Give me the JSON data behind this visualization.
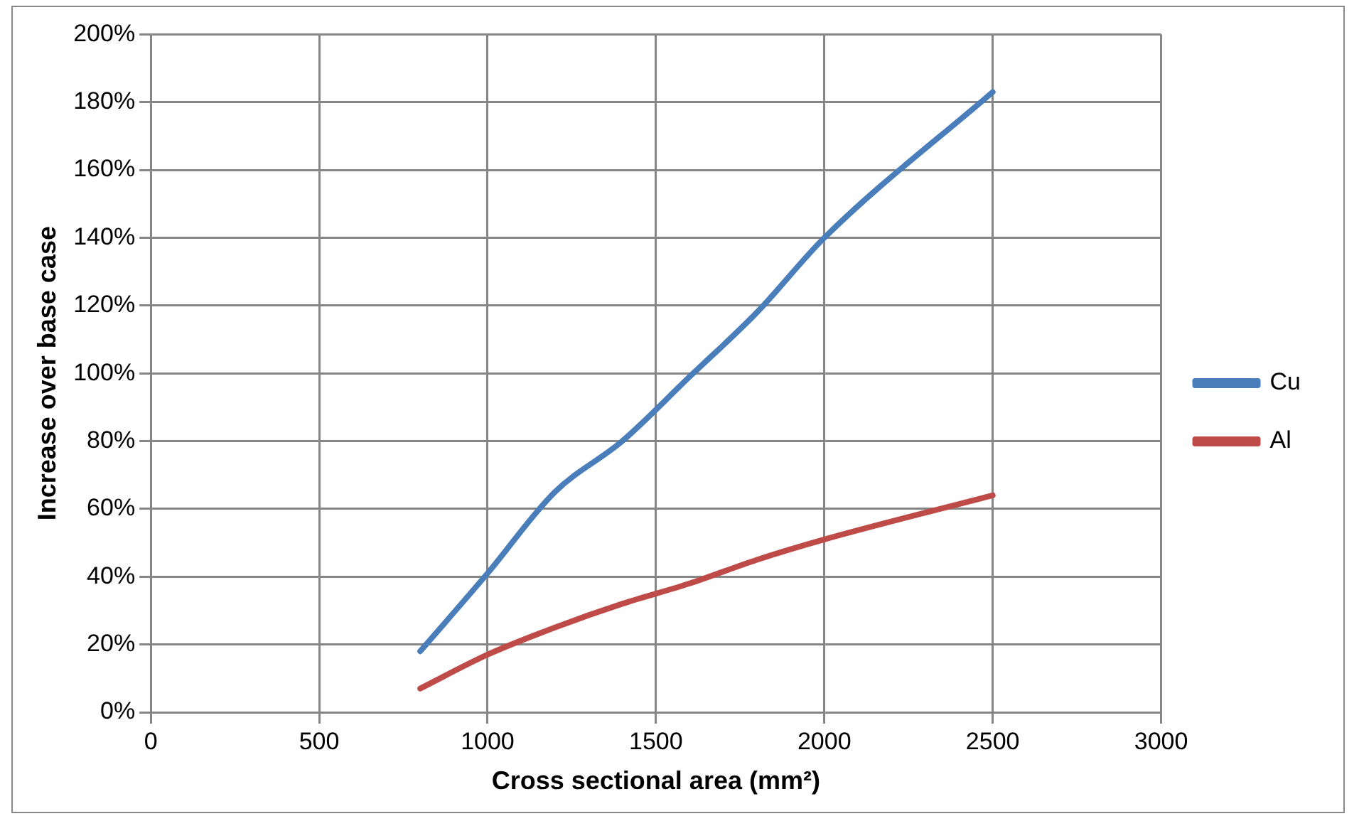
{
  "chart_data": {
    "type": "line",
    "xlabel": "Cross sectional area (mm²)",
    "ylabel": "Increase over base case",
    "xlim": [
      0,
      3000
    ],
    "xticks": [
      0,
      500,
      1000,
      1500,
      2000,
      2500,
      3000
    ],
    "ylim": [
      0,
      200
    ],
    "yticks": [
      {
        "value": 0,
        "label": "0%"
      },
      {
        "value": 20,
        "label": "20%"
      },
      {
        "value": 40,
        "label": "40%"
      },
      {
        "value": 60,
        "label": "60%"
      },
      {
        "value": 80,
        "label": "80%"
      },
      {
        "value": 100,
        "label": "100%"
      },
      {
        "value": 120,
        "label": "120%"
      },
      {
        "value": 140,
        "label": "140%"
      },
      {
        "value": 160,
        "label": "160%"
      },
      {
        "value": 180,
        "label": "180%"
      },
      {
        "value": 200,
        "label": "200%"
      }
    ],
    "x": [
      800,
      1000,
      1200,
      1400,
      1600,
      1800,
      2000,
      2500
    ],
    "series": [
      {
        "name": "Cu",
        "color": "#4a7ebb",
        "values": [
          18,
          41,
          65,
          80,
          99,
          118,
          140,
          183
        ]
      },
      {
        "name": "Al",
        "color": "#be4b48",
        "values": [
          7,
          17,
          25,
          32,
          38,
          45,
          51,
          64
        ]
      }
    ],
    "grid": true,
    "legend": "right",
    "marker": "none",
    "line_style": "solid"
  }
}
